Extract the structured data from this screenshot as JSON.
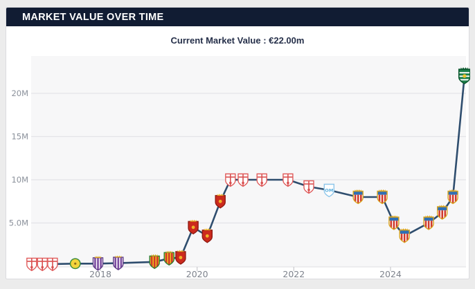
{
  "page": {
    "background": "#ececec"
  },
  "header": {
    "title": "MARKET VALUE OVER TIME",
    "background": "#111c33",
    "text_color": "#ffffff"
  },
  "summary": {
    "label": "Current Market Value : €22.00m",
    "current_value_m": 22.0,
    "currency": "EUR"
  },
  "chart_data": {
    "type": "line",
    "title": "MARKET VALUE OVER TIME",
    "subtitle": "Current Market Value : €22.00m",
    "unit": "EUR millions",
    "grid": "horizontal-only",
    "legend": "none (club crest markers on each data point)",
    "line_color": "#2e4d6e",
    "plot_background": "#f7f7f8",
    "gridline_color": "#e4e4e7",
    "tick_color": "#c9c9cd",
    "axis_label_color": "#8b919b",
    "x_label_color": "#7d828c",
    "y_domain": [
      0,
      24.3
    ],
    "x_domain_years": [
      2016.55,
      2025.56
    ],
    "y_ticks": [
      {
        "label": "5.0M",
        "value": 5
      },
      {
        "label": "10M",
        "value": 10
      },
      {
        "label": "15M",
        "value": 15
      },
      {
        "label": "20M",
        "value": 20
      }
    ],
    "x_ticks": [
      {
        "label": "2018",
        "year": 2018
      },
      {
        "label": "2020",
        "year": 2020
      },
      {
        "label": "2022",
        "year": 2022
      },
      {
        "label": "2024",
        "year": 2024
      }
    ],
    "points": [
      {
        "x_year": 2016.58,
        "value_m": 0.25,
        "club": "granada"
      },
      {
        "x_year": 2016.8,
        "value_m": 0.25,
        "club": "granada"
      },
      {
        "x_year": 2017.01,
        "value_m": 0.25,
        "club": "granada"
      },
      {
        "x_year": 2017.48,
        "value_m": 0.3,
        "club": "leones"
      },
      {
        "x_year": 2017.95,
        "value_m": 0.3,
        "club": "valladolid"
      },
      {
        "x_year": 2018.37,
        "value_m": 0.35,
        "club": "valladolid"
      },
      {
        "x_year": 2019.12,
        "value_m": 0.5,
        "club": "nastic"
      },
      {
        "x_year": 2019.42,
        "value_m": 0.9,
        "club": "nastic"
      },
      {
        "x_year": 2019.66,
        "value_m": 1.0,
        "club": "zaragoza"
      },
      {
        "x_year": 2019.92,
        "value_m": 4.5,
        "club": "zaragoza"
      },
      {
        "x_year": 2020.21,
        "value_m": 3.5,
        "club": "zaragoza"
      },
      {
        "x_year": 2020.48,
        "value_m": 7.5,
        "club": "zaragoza"
      },
      {
        "x_year": 2020.69,
        "value_m": 10.0,
        "club": "granada"
      },
      {
        "x_year": 2020.95,
        "value_m": 10.0,
        "club": "granada"
      },
      {
        "x_year": 2021.34,
        "value_m": 10.0,
        "club": "granada"
      },
      {
        "x_year": 2021.88,
        "value_m": 10.0,
        "club": "granada"
      },
      {
        "x_year": 2022.31,
        "value_m": 9.2,
        "club": "granada"
      },
      {
        "x_year": 2022.73,
        "value_m": 8.8,
        "club": "marseille"
      },
      {
        "x_year": 2023.33,
        "value_m": 8.0,
        "club": "almeria"
      },
      {
        "x_year": 2023.83,
        "value_m": 8.0,
        "club": "almeria"
      },
      {
        "x_year": 2024.07,
        "value_m": 5.0,
        "club": "almeria"
      },
      {
        "x_year": 2024.29,
        "value_m": 3.5,
        "club": "almeria"
      },
      {
        "x_year": 2024.79,
        "value_m": 5.0,
        "club": "almeria"
      },
      {
        "x_year": 2025.07,
        "value_m": 6.2,
        "club": "almeria"
      },
      {
        "x_year": 2025.29,
        "value_m": 8.0,
        "club": "almeria"
      },
      {
        "x_year": 2025.53,
        "value_m": 22.0,
        "club": "sporting"
      }
    ],
    "clubs": {
      "granada": {
        "icon": "granada-crest-icon",
        "shape": "shield",
        "fill": "#ffffff",
        "border": "#e05c5c",
        "cross": "#d94f4f",
        "dot": "#d94f4f",
        "dot_dy": 4.6,
        "dot_r": 1.8
      },
      "leones": {
        "icon": "leones-crest-icon",
        "shape": "circle",
        "fill": "#f3d43c",
        "border": "#3e8e41",
        "dot": "#8a6d1a",
        "dot_r": 1.6
      },
      "valladolid": {
        "icon": "valladolid-crest-icon",
        "shape": "shield",
        "fill": "#ffffff",
        "border": "#5e3a86",
        "vstripes": "#7b4ba0",
        "crown": "#d9a520"
      },
      "nastic": {
        "icon": "nastic-crest-icon",
        "shape": "shield",
        "fill": "#f2c21c",
        "border": "#2f7d32",
        "vstripes": "#d03a2c",
        "crown": "#d9a520"
      },
      "zaragoza": {
        "icon": "zaragoza-crest-icon",
        "shape": "shield",
        "fill": "#cc2a1d",
        "border": "#8f1a12",
        "dot": "#f0b429",
        "dot_r": 2.4,
        "crown": "#f0b429"
      },
      "marseille": {
        "icon": "marseille-crest-icon",
        "shape": "shield",
        "fill": "#ffffff",
        "border": "#8ec6ea",
        "text": "OM",
        "text_color": "#5aaede"
      },
      "almeria": {
        "icon": "almeria-crest-icon",
        "shape": "shield",
        "fill": "#ffffff",
        "border": "#d9a520",
        "top_band": "#2f6fb5",
        "vstripes": "#d03a2c",
        "crown": "#d9a520"
      },
      "sporting": {
        "icon": "sporting-crest-icon",
        "shape": "shield",
        "fill": "#1c7f4b",
        "border": "#0f5a31",
        "hstripes": "#ffffff",
        "dot": "#f0c32e",
        "dot_r": 2.3,
        "crown": "#0f5a31",
        "scale": 1.15
      }
    }
  }
}
